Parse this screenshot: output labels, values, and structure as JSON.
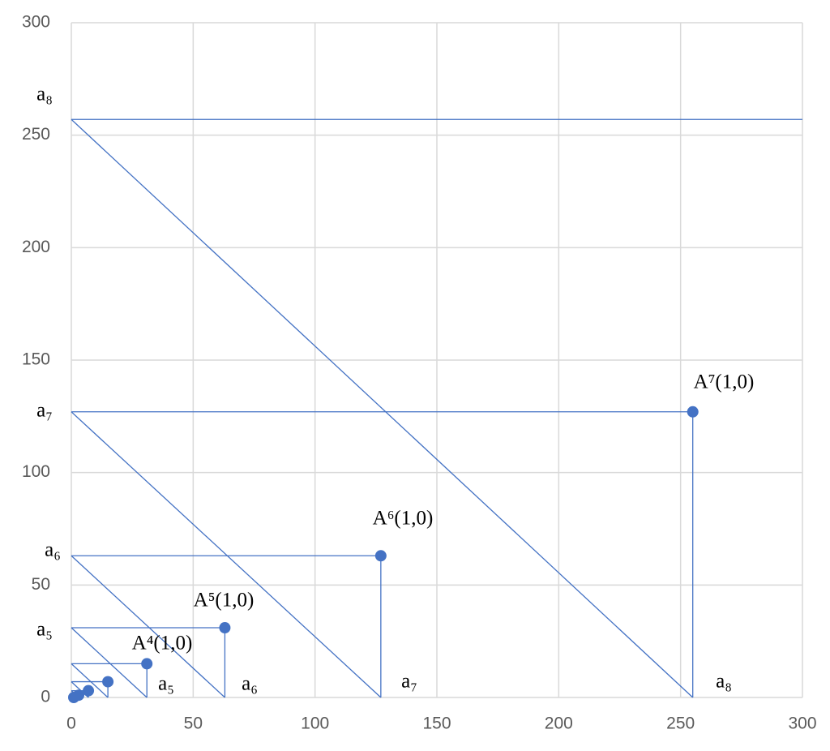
{
  "chart_data": {
    "type": "scatter",
    "x": [
      1,
      3,
      7,
      15,
      31,
      63,
      127,
      255
    ],
    "values": [
      0,
      1,
      3,
      7,
      15,
      31,
      63,
      127
    ],
    "color": "#4472c4",
    "segments": [
      {
        "x": [
          0,
          300
        ],
        "y": [
          257,
          257
        ]
      },
      {
        "x": [
          0,
          255
        ],
        "y": [
          127,
          127
        ]
      },
      {
        "x": [
          0,
          127
        ],
        "y": [
          63,
          63
        ]
      },
      {
        "x": [
          0,
          63
        ],
        "y": [
          31,
          31
        ]
      },
      {
        "x": [
          0,
          31
        ],
        "y": [
          15,
          15
        ]
      },
      {
        "x": [
          0,
          15
        ],
        "y": [
          7,
          7
        ]
      },
      {
        "x": [
          0,
          7
        ],
        "y": [
          3,
          3
        ]
      },
      {
        "x": [
          0,
          3
        ],
        "y": [
          1,
          1
        ]
      },
      {
        "x": [
          255,
          255
        ],
        "y": [
          127,
          0
        ]
      },
      {
        "x": [
          127,
          127
        ],
        "y": [
          63,
          0
        ]
      },
      {
        "x": [
          63,
          63
        ],
        "y": [
          31,
          0
        ]
      },
      {
        "x": [
          31,
          31
        ],
        "y": [
          15,
          0
        ]
      },
      {
        "x": [
          15,
          15
        ],
        "y": [
          7,
          0
        ]
      },
      {
        "x": [
          7,
          7
        ],
        "y": [
          3,
          0
        ]
      },
      {
        "x": [
          3,
          3
        ],
        "y": [
          1,
          0
        ]
      },
      {
        "x": [
          0,
          255
        ],
        "y": [
          257,
          0
        ]
      },
      {
        "x": [
          0,
          127
        ],
        "y": [
          127,
          0
        ]
      },
      {
        "x": [
          0,
          63
        ],
        "y": [
          63,
          0
        ]
      },
      {
        "x": [
          0,
          31
        ],
        "y": [
          31,
          0
        ]
      },
      {
        "x": [
          0,
          15
        ],
        "y": [
          15,
          0
        ]
      },
      {
        "x": [
          0,
          7
        ],
        "y": [
          7,
          0
        ]
      },
      {
        "x": [
          0,
          3
        ],
        "y": [
          3,
          0
        ]
      }
    ],
    "annotations": [
      "a₈",
      "a₇",
      "a₆",
      "a₅",
      "a₅",
      "a₆",
      "a₇",
      "a₈",
      "A⁴(1,0)",
      "A⁵(1,0)",
      "A⁶(1,0)",
      "A⁷(1,0)"
    ],
    "xlim": [
      0,
      300
    ],
    "ylim": [
      0,
      300
    ],
    "xticks": [
      0,
      50,
      100,
      150,
      200,
      250,
      300
    ],
    "yticks": [
      0,
      50,
      100,
      150,
      200,
      250,
      300
    ],
    "grid": true
  }
}
